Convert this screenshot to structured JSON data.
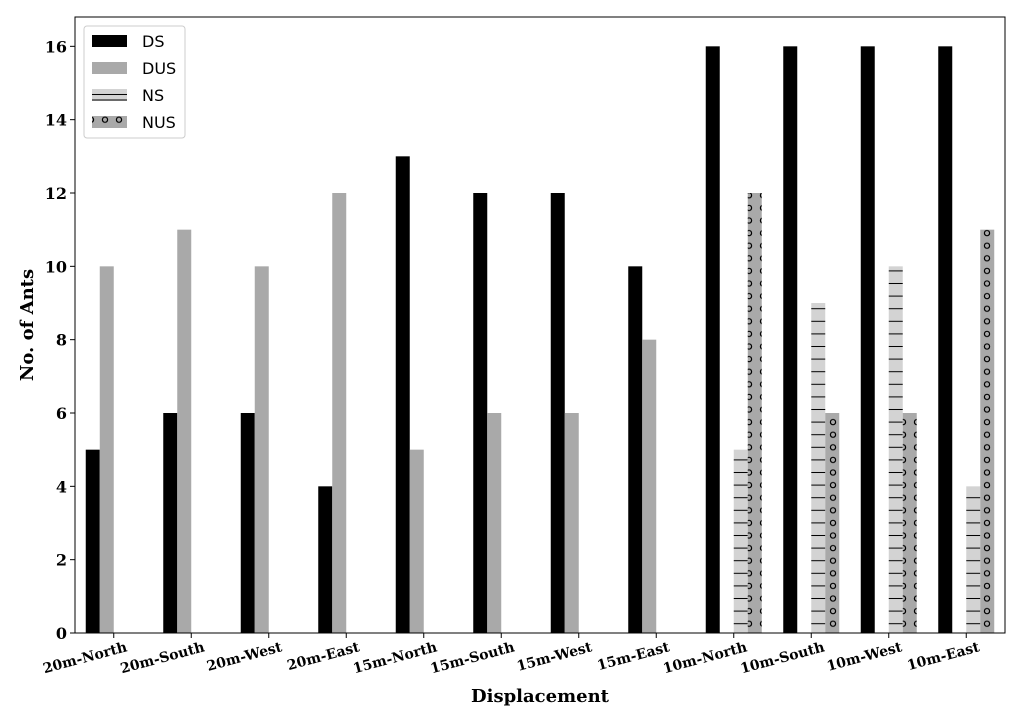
{
  "chart_data": {
    "type": "bar",
    "title": "",
    "xlabel": "Displacement",
    "ylabel": "No. of Ants",
    "ylim": [
      0,
      16.8
    ],
    "yticks": [
      0,
      2,
      4,
      6,
      8,
      10,
      12,
      14,
      16
    ],
    "grid": false,
    "legend_position": "top-left",
    "categories": [
      "20m-North",
      "20m-South",
      "20m-West",
      "20m-East",
      "15m-North",
      "15m-South",
      "15m-West",
      "15m-East",
      "10m-North",
      "10m-South",
      "10m-West",
      "10m-East"
    ],
    "series": [
      {
        "name": "DS",
        "color": "#000000",
        "pattern": "solid",
        "values": [
          5,
          6,
          6,
          4,
          13,
          12,
          12,
          10,
          16,
          16,
          16,
          16
        ]
      },
      {
        "name": "DUS",
        "color": "#a9a9a9",
        "pattern": "solid",
        "values": [
          10,
          11,
          10,
          12,
          5,
          6,
          6,
          8,
          0,
          0,
          0,
          0
        ]
      },
      {
        "name": "NS",
        "color": "#d3d3d3",
        "pattern": "horizontal-lines",
        "values": [
          0,
          0,
          0,
          0,
          0,
          0,
          0,
          0,
          5,
          9,
          10,
          4
        ]
      },
      {
        "name": "NUS",
        "color": "#a9a9a9",
        "pattern": "circles",
        "values": [
          0,
          0,
          0,
          0,
          0,
          0,
          0,
          0,
          12,
          6,
          6,
          11
        ]
      }
    ]
  }
}
